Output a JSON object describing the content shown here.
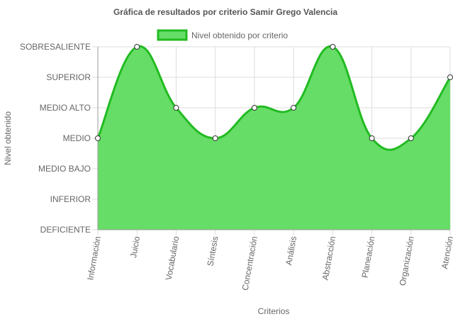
{
  "chart_data": {
    "type": "area",
    "title": "Gráfica de resultados por criterio Samir Grego Valencia",
    "xlabel": "Criterios",
    "ylabel": "Nivel obtenido",
    "legend": {
      "label": "Nivel obtenido por criterio",
      "placement": "top-center"
    },
    "y_levels": [
      "DEFICIENTE",
      "INFERIOR",
      "MEDIO BAJO",
      "MEDIO",
      "MEDIO ALTO",
      "SUPERIOR",
      "SOBRESALIENTE"
    ],
    "categories": [
      "Información",
      "Juicio",
      "Vocabulario",
      "Síntesis",
      "Concentración",
      "Análisis",
      "Abstracción",
      "Planeación",
      "Organización",
      "Atención"
    ],
    "series": [
      {
        "name": "Nivel obtenido por criterio",
        "values": [
          "MEDIO",
          "SOBRESALIENTE",
          "MEDIO ALTO",
          "MEDIO",
          "MEDIO ALTO",
          "MEDIO ALTO",
          "SOBRESALIENTE",
          "MEDIO",
          "MEDIO",
          "SUPERIOR"
        ]
      }
    ],
    "grid": true,
    "colors": {
      "fill": "#66dd66",
      "line": "#22bb22",
      "point_fill": "#ffffff",
      "point_stroke": "#333333",
      "grid": "#dddddd",
      "axis": "#999999"
    }
  }
}
